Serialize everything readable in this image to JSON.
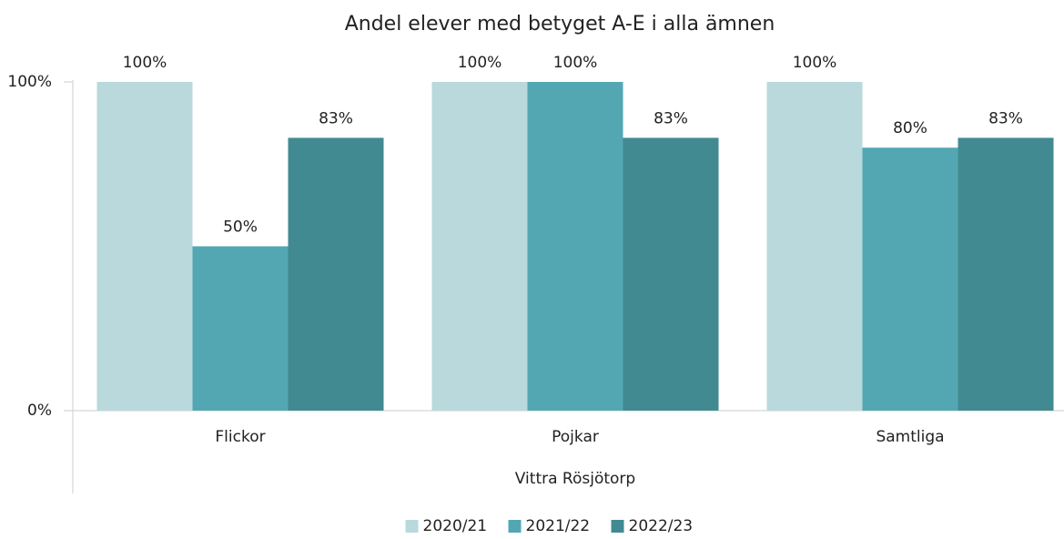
{
  "chart_data": {
    "type": "bar",
    "title": "Andel elever med betyget A-E i alla ämnen",
    "x_label": "Vittra Rösjötorp",
    "categories": [
      "Flickor",
      "Pojkar",
      "Samtliga"
    ],
    "series": [
      {
        "name": "2020/21",
        "color": "#b9d9dc",
        "values": [
          100,
          100,
          100
        ],
        "value_labels": [
          "100%",
          "100%",
          "100%"
        ]
      },
      {
        "name": "2021/22",
        "color": "#53a7b3",
        "values": [
          50,
          100,
          80
        ],
        "value_labels": [
          "50%",
          "100%",
          "80%"
        ]
      },
      {
        "name": "2022/23",
        "color": "#428a92",
        "values": [
          83,
          83,
          83
        ],
        "value_labels": [
          "83%",
          "83%",
          "83%"
        ]
      }
    ],
    "ylim": [
      0,
      100
    ],
    "yticks": [
      {
        "value": 0,
        "label": "0%"
      },
      {
        "value": 100,
        "label": "100%"
      }
    ],
    "legend": "bottom"
  }
}
